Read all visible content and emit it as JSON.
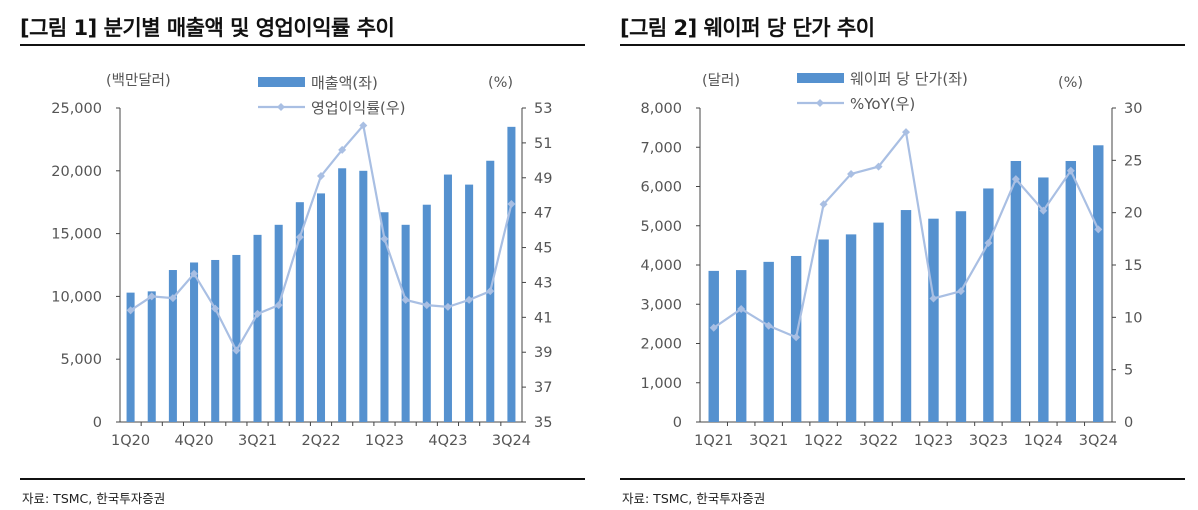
{
  "colors": {
    "bar": "#5591cf",
    "line": "#a9bfe3",
    "axis": "#444444",
    "text": "#555555"
  },
  "left_panel": {
    "title": "[그림 1] 분기별 매출액 및 영업이익률 추이",
    "source": "자료: TSMC, 한국투자증권"
  },
  "right_panel": {
    "title": "[그림 2] 웨이퍼 당 단가 추이",
    "source": "자료: TSMC, 한국투자증권"
  },
  "chart_data": [
    {
      "type": "bar+line",
      "left_unit": "(백만달러)",
      "right_unit": "(%)",
      "categories": [
        "1Q20",
        "2Q20",
        "3Q20",
        "4Q20",
        "1Q21",
        "2Q21",
        "3Q21",
        "4Q21",
        "1Q22",
        "2Q22",
        "3Q22",
        "4Q22",
        "1Q23",
        "2Q23",
        "3Q23",
        "4Q23",
        "1Q24",
        "2Q24",
        "3Q24"
      ],
      "x_tick_labels": [
        "1Q20",
        "4Q20",
        "3Q21",
        "2Q22",
        "1Q23",
        "4Q23",
        "3Q24"
      ],
      "series": [
        {
          "name": "매출액(좌)",
          "type": "bar",
          "axis": "left",
          "values": [
            10300,
            10400,
            12100,
            12700,
            12900,
            13300,
            14900,
            15700,
            17500,
            18200,
            20200,
            20000,
            16700,
            15700,
            17300,
            19700,
            18900,
            20800,
            23500
          ]
        },
        {
          "name": "영업이익률(우)",
          "type": "line",
          "axis": "right",
          "values": [
            41.4,
            42.2,
            42.1,
            43.5,
            41.5,
            39.1,
            41.2,
            41.7,
            45.6,
            49.1,
            50.6,
            52.0,
            45.5,
            42.0,
            41.7,
            41.6,
            42.0,
            42.5,
            47.5
          ]
        }
      ],
      "ylim_left": [
        0,
        25000
      ],
      "yticks_left": [
        "0",
        "5,000",
        "10,000",
        "15,000",
        "20,000",
        "25,000"
      ],
      "ylim_right": [
        35,
        53
      ],
      "yticks_right": [
        "35",
        "37",
        "39",
        "41",
        "43",
        "45",
        "47",
        "49",
        "51",
        "53"
      ],
      "grid": false,
      "legend": "top-center"
    },
    {
      "type": "bar+line",
      "left_unit": "(달러)",
      "right_unit": "(%)",
      "categories": [
        "1Q21",
        "2Q21",
        "3Q21",
        "4Q21",
        "1Q22",
        "2Q22",
        "3Q22",
        "4Q22",
        "1Q23",
        "2Q23",
        "3Q23",
        "4Q23",
        "1Q24",
        "2Q24",
        "3Q24"
      ],
      "x_tick_labels": [
        "1Q21",
        "3Q21",
        "1Q22",
        "3Q22",
        "1Q23",
        "3Q23",
        "1Q24",
        "3Q24"
      ],
      "series": [
        {
          "name": "웨이퍼 당 단가(좌)",
          "type": "bar",
          "axis": "left",
          "values": [
            3850,
            3870,
            4080,
            4230,
            4650,
            4780,
            5080,
            5400,
            5180,
            5370,
            5950,
            6650,
            6230,
            6650,
            7050
          ]
        },
        {
          "name": "%YoY(우)",
          "type": "line",
          "axis": "right",
          "values": [
            9.0,
            10.8,
            9.2,
            8.1,
            20.8,
            23.7,
            24.4,
            27.7,
            11.8,
            12.5,
            17.1,
            23.2,
            20.2,
            24.0,
            18.4
          ]
        }
      ],
      "ylim_left": [
        0,
        8000
      ],
      "yticks_left": [
        "0",
        "1,000",
        "2,000",
        "3,000",
        "4,000",
        "5,000",
        "6,000",
        "7,000",
        "8,000"
      ],
      "ylim_right": [
        0,
        30
      ],
      "yticks_right": [
        "0",
        "5",
        "10",
        "15",
        "20",
        "25",
        "30"
      ],
      "grid": false,
      "legend": "top-center"
    }
  ]
}
